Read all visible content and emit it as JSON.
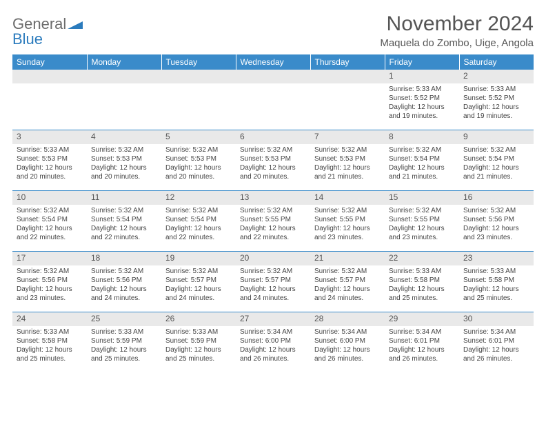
{
  "brand": {
    "name_gray": "General",
    "name_blue": "Blue"
  },
  "title": "November 2024",
  "location": "Maquela do Zombo, Uige, Angola",
  "colors": {
    "header_bg": "#3a8bca",
    "header_text": "#ffffff",
    "daynum_bg": "#e9e9e9",
    "row_divider": "#3a8bca",
    "body_text": "#444444",
    "title_text": "#555555"
  },
  "day_headers": [
    "Sunday",
    "Monday",
    "Tuesday",
    "Wednesday",
    "Thursday",
    "Friday",
    "Saturday"
  ],
  "weeks": [
    {
      "nums": [
        "",
        "",
        "",
        "",
        "",
        "1",
        "2"
      ],
      "cells": [
        null,
        null,
        null,
        null,
        null,
        {
          "sunrise": "Sunrise: 5:33 AM",
          "sunset": "Sunset: 5:52 PM",
          "day1": "Daylight: 12 hours",
          "day2": "and 19 minutes."
        },
        {
          "sunrise": "Sunrise: 5:33 AM",
          "sunset": "Sunset: 5:52 PM",
          "day1": "Daylight: 12 hours",
          "day2": "and 19 minutes."
        }
      ]
    },
    {
      "nums": [
        "3",
        "4",
        "5",
        "6",
        "7",
        "8",
        "9"
      ],
      "cells": [
        {
          "sunrise": "Sunrise: 5:33 AM",
          "sunset": "Sunset: 5:53 PM",
          "day1": "Daylight: 12 hours",
          "day2": "and 20 minutes."
        },
        {
          "sunrise": "Sunrise: 5:32 AM",
          "sunset": "Sunset: 5:53 PM",
          "day1": "Daylight: 12 hours",
          "day2": "and 20 minutes."
        },
        {
          "sunrise": "Sunrise: 5:32 AM",
          "sunset": "Sunset: 5:53 PM",
          "day1": "Daylight: 12 hours",
          "day2": "and 20 minutes."
        },
        {
          "sunrise": "Sunrise: 5:32 AM",
          "sunset": "Sunset: 5:53 PM",
          "day1": "Daylight: 12 hours",
          "day2": "and 20 minutes."
        },
        {
          "sunrise": "Sunrise: 5:32 AM",
          "sunset": "Sunset: 5:53 PM",
          "day1": "Daylight: 12 hours",
          "day2": "and 21 minutes."
        },
        {
          "sunrise": "Sunrise: 5:32 AM",
          "sunset": "Sunset: 5:54 PM",
          "day1": "Daylight: 12 hours",
          "day2": "and 21 minutes."
        },
        {
          "sunrise": "Sunrise: 5:32 AM",
          "sunset": "Sunset: 5:54 PM",
          "day1": "Daylight: 12 hours",
          "day2": "and 21 minutes."
        }
      ]
    },
    {
      "nums": [
        "10",
        "11",
        "12",
        "13",
        "14",
        "15",
        "16"
      ],
      "cells": [
        {
          "sunrise": "Sunrise: 5:32 AM",
          "sunset": "Sunset: 5:54 PM",
          "day1": "Daylight: 12 hours",
          "day2": "and 22 minutes."
        },
        {
          "sunrise": "Sunrise: 5:32 AM",
          "sunset": "Sunset: 5:54 PM",
          "day1": "Daylight: 12 hours",
          "day2": "and 22 minutes."
        },
        {
          "sunrise": "Sunrise: 5:32 AM",
          "sunset": "Sunset: 5:54 PM",
          "day1": "Daylight: 12 hours",
          "day2": "and 22 minutes."
        },
        {
          "sunrise": "Sunrise: 5:32 AM",
          "sunset": "Sunset: 5:55 PM",
          "day1": "Daylight: 12 hours",
          "day2": "and 22 minutes."
        },
        {
          "sunrise": "Sunrise: 5:32 AM",
          "sunset": "Sunset: 5:55 PM",
          "day1": "Daylight: 12 hours",
          "day2": "and 23 minutes."
        },
        {
          "sunrise": "Sunrise: 5:32 AM",
          "sunset": "Sunset: 5:55 PM",
          "day1": "Daylight: 12 hours",
          "day2": "and 23 minutes."
        },
        {
          "sunrise": "Sunrise: 5:32 AM",
          "sunset": "Sunset: 5:56 PM",
          "day1": "Daylight: 12 hours",
          "day2": "and 23 minutes."
        }
      ]
    },
    {
      "nums": [
        "17",
        "18",
        "19",
        "20",
        "21",
        "22",
        "23"
      ],
      "cells": [
        {
          "sunrise": "Sunrise: 5:32 AM",
          "sunset": "Sunset: 5:56 PM",
          "day1": "Daylight: 12 hours",
          "day2": "and 23 minutes."
        },
        {
          "sunrise": "Sunrise: 5:32 AM",
          "sunset": "Sunset: 5:56 PM",
          "day1": "Daylight: 12 hours",
          "day2": "and 24 minutes."
        },
        {
          "sunrise": "Sunrise: 5:32 AM",
          "sunset": "Sunset: 5:57 PM",
          "day1": "Daylight: 12 hours",
          "day2": "and 24 minutes."
        },
        {
          "sunrise": "Sunrise: 5:32 AM",
          "sunset": "Sunset: 5:57 PM",
          "day1": "Daylight: 12 hours",
          "day2": "and 24 minutes."
        },
        {
          "sunrise": "Sunrise: 5:32 AM",
          "sunset": "Sunset: 5:57 PM",
          "day1": "Daylight: 12 hours",
          "day2": "and 24 minutes."
        },
        {
          "sunrise": "Sunrise: 5:33 AM",
          "sunset": "Sunset: 5:58 PM",
          "day1": "Daylight: 12 hours",
          "day2": "and 25 minutes."
        },
        {
          "sunrise": "Sunrise: 5:33 AM",
          "sunset": "Sunset: 5:58 PM",
          "day1": "Daylight: 12 hours",
          "day2": "and 25 minutes."
        }
      ]
    },
    {
      "nums": [
        "24",
        "25",
        "26",
        "27",
        "28",
        "29",
        "30"
      ],
      "cells": [
        {
          "sunrise": "Sunrise: 5:33 AM",
          "sunset": "Sunset: 5:58 PM",
          "day1": "Daylight: 12 hours",
          "day2": "and 25 minutes."
        },
        {
          "sunrise": "Sunrise: 5:33 AM",
          "sunset": "Sunset: 5:59 PM",
          "day1": "Daylight: 12 hours",
          "day2": "and 25 minutes."
        },
        {
          "sunrise": "Sunrise: 5:33 AM",
          "sunset": "Sunset: 5:59 PM",
          "day1": "Daylight: 12 hours",
          "day2": "and 25 minutes."
        },
        {
          "sunrise": "Sunrise: 5:34 AM",
          "sunset": "Sunset: 6:00 PM",
          "day1": "Daylight: 12 hours",
          "day2": "and 26 minutes."
        },
        {
          "sunrise": "Sunrise: 5:34 AM",
          "sunset": "Sunset: 6:00 PM",
          "day1": "Daylight: 12 hours",
          "day2": "and 26 minutes."
        },
        {
          "sunrise": "Sunrise: 5:34 AM",
          "sunset": "Sunset: 6:01 PM",
          "day1": "Daylight: 12 hours",
          "day2": "and 26 minutes."
        },
        {
          "sunrise": "Sunrise: 5:34 AM",
          "sunset": "Sunset: 6:01 PM",
          "day1": "Daylight: 12 hours",
          "day2": "and 26 minutes."
        }
      ]
    }
  ]
}
